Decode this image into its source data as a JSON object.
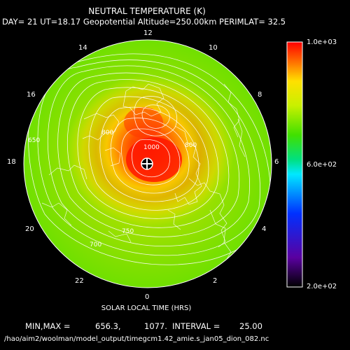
{
  "header": {
    "title": "NEUTRAL TEMPERATURE (K)",
    "subtitle": "DAY= 21 UT=18.17 Geopotential Altitude=250.00km PERIMLAT= 32.5"
  },
  "footer": {
    "xlabel": "SOLAR LOCAL TIME (HRS)",
    "minmax_label": "MIN,MAX =",
    "min_value": "656.3,",
    "max_value": "1077.",
    "interval_label": "INTERVAL =",
    "interval_value": "25.00",
    "filepath": "/hao/aim2/woolman/model_output/timegcm1.42_amie.s_jan05_dion_082.nc"
  },
  "colorbar": {
    "max_label": "1.0e+03",
    "mid_label": "6.0e+02",
    "min_label": "2.0e+02"
  },
  "chart_data": {
    "type": "heatmap",
    "projection": "polar stereographic (north pole)",
    "title": "NEUTRAL TEMPERATURE (K)",
    "units": "K",
    "min": 656.3,
    "max": 1077,
    "contour_interval": 25.0,
    "color_range": [
      200,
      1000
    ],
    "perimeter_latitude": 32.5,
    "local_time_labels": [
      "12",
      "14",
      "16",
      "18",
      "20",
      "22",
      "0",
      "2",
      "4",
      "6",
      "8",
      "10"
    ],
    "contour_labels": [
      "650",
      "700",
      "750",
      "800",
      "800",
      "1000"
    ],
    "hot_spot_marker": "plus"
  }
}
